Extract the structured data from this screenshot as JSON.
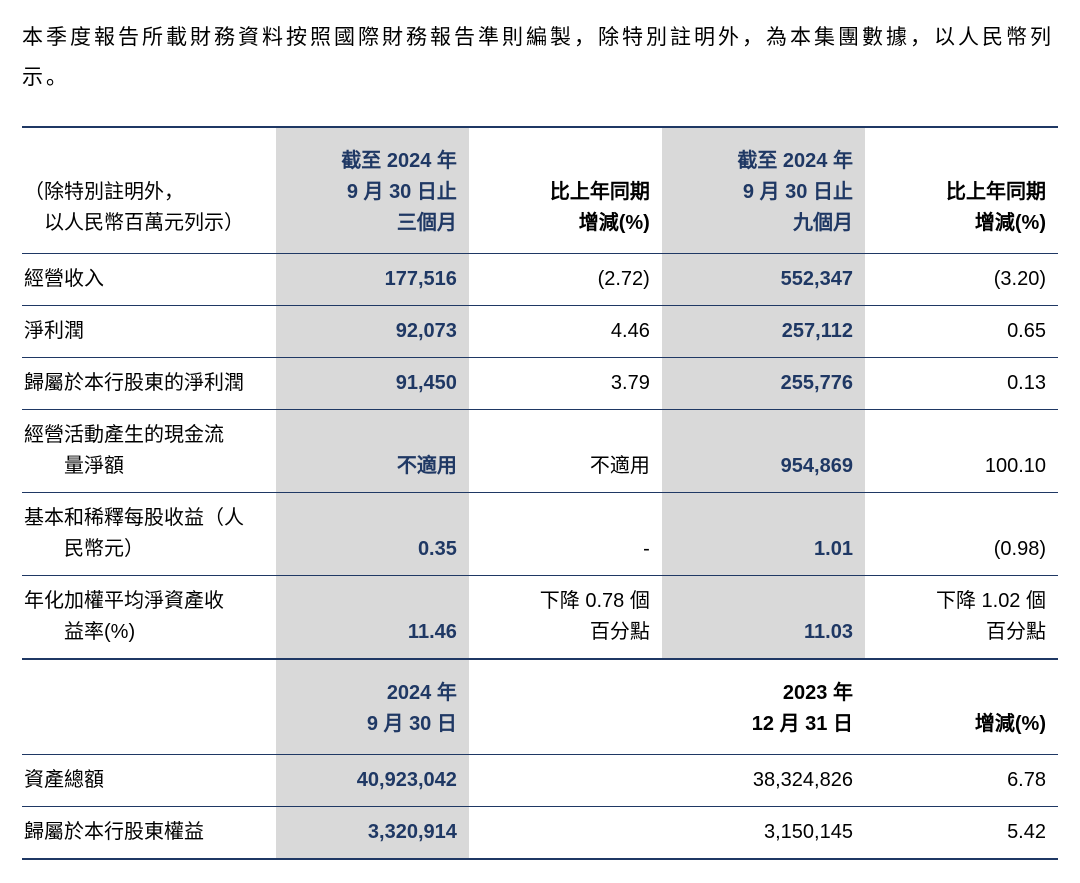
{
  "intro": "本季度報告所載財務資料按照國際財務報告準則編製，除特別註明外，為本集團數據，以人民幣列示。",
  "colors": {
    "navy": "#1f3864",
    "highlight_bg": "#d9d9d9",
    "text": "#000000"
  },
  "table1": {
    "header": {
      "label_line1": "（除特別註明外，",
      "label_line2": "以人民幣百萬元列示）",
      "col1_line1": "截至 2024 年",
      "col1_line2": "9 月 30 日止",
      "col1_line3": "三個月",
      "col2_line1": "比上年同期",
      "col2_line2": "增減(%)",
      "col3_line1": "截至 2024 年",
      "col3_line2": "9 月 30 日止",
      "col3_line3": "九個月",
      "col4_line1": "比上年同期",
      "col4_line2": "增減(%)"
    },
    "rows": [
      {
        "label": "經營收入",
        "v1": "177,516",
        "p1": "(2.72)",
        "v2": "552,347",
        "p2": "(3.20)"
      },
      {
        "label": "淨利潤",
        "v1": "92,073",
        "p1": "4.46",
        "v2": "257,112",
        "p2": "0.65"
      },
      {
        "label": "歸屬於本行股東的淨利潤",
        "v1": "91,450",
        "p1": "3.79",
        "v2": "255,776",
        "p2": "0.13"
      },
      {
        "label1": "經營活動產生的現金流",
        "label2": "量淨額",
        "v1": "不適用",
        "p1": "不適用",
        "v2": "954,869",
        "p2": "100.10"
      },
      {
        "label1": "基本和稀釋每股收益（人",
        "label2": "民幣元）",
        "v1": "0.35",
        "p1": "-",
        "v2": "1.01",
        "p2": "(0.98)"
      },
      {
        "label1": "年化加權平均淨資產收",
        "label2": "益率(%)",
        "v1": "11.46",
        "p1a": "下降 0.78 個",
        "p1b": "百分點",
        "v2": "11.03",
        "p2a": "下降 1.02 個",
        "p2b": "百分點"
      }
    ]
  },
  "table2": {
    "header": {
      "col1_line1": "2024 年",
      "col1_line2": "9 月 30 日",
      "col2_line1": "2023 年",
      "col2_line2": "12 月 31 日",
      "col3": "增減(%)"
    },
    "rows": [
      {
        "label": "資產總額",
        "v1": "40,923,042",
        "v2": "38,324,826",
        "p": "6.78"
      },
      {
        "label": "歸屬於本行股東權益",
        "v1": "3,320,914",
        "v2": "3,150,145",
        "p": "5.42"
      }
    ]
  }
}
